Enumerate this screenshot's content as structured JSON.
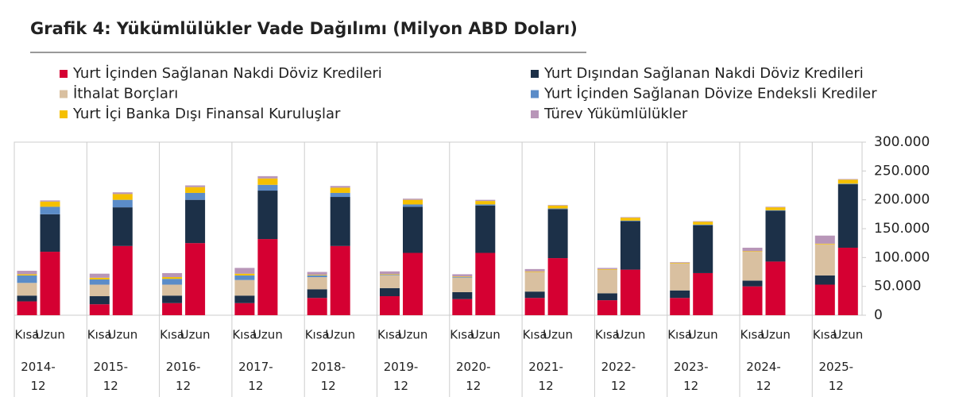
{
  "chart_data": {
    "type": "stacked-bar",
    "title": "Grafik 4: Yükümlülükler Vade Dağılımı (Milyon ABD Doları)",
    "groups": [
      "2014-12",
      "2015-12",
      "2016-12",
      "2017-12",
      "2018-12",
      "2019-12",
      "2020-12",
      "2021-12",
      "2022-12",
      "2023-12",
      "2024-12",
      "2025-12"
    ],
    "categories": [
      "Kısa",
      "Uzun",
      "Kısa",
      "Uzun",
      "Kısa",
      "Uzun",
      "Kısa",
      "Uzun",
      "Kısa",
      "Uzun",
      "Kısa",
      "Uzun",
      "Kısa",
      "Uzun",
      "Kısa",
      "Uzun",
      "Kısa",
      "Uzun",
      "Kısa",
      "Uzun",
      "Kısa",
      "Uzun",
      "Kısa",
      "Uzun"
    ],
    "series": [
      {
        "name": "Yurt İçinden Sağlanan Nakdi Döviz Kredileri",
        "color": "#d50032",
        "values": [
          24000,
          110000,
          19000,
          120000,
          21000,
          125000,
          21000,
          132000,
          30000,
          120000,
          33000,
          108000,
          28000,
          108000,
          30000,
          99000,
          26000,
          79000,
          30000,
          73000,
          50000,
          93000,
          53000,
          117000
        ]
      },
      {
        "name": "Yurt Dışından Sağlanan Nakdi Döviz Kredileri",
        "color": "#1c3048",
        "values": [
          10000,
          65000,
          14000,
          67000,
          13000,
          75000,
          13000,
          84000,
          15000,
          85000,
          14000,
          80000,
          12000,
          82000,
          11000,
          85000,
          12000,
          84000,
          13000,
          83000,
          10000,
          88000,
          16000,
          110000
        ]
      },
      {
        "name": "İthalat Borçları",
        "color": "#d9c0a0",
        "values": [
          22000,
          0,
          20000,
          0,
          19000,
          0,
          27000,
          0,
          21000,
          0,
          22000,
          0,
          25000,
          0,
          34000,
          0,
          41000,
          0,
          47000,
          0,
          50000,
          0,
          54000,
          0
        ]
      },
      {
        "name": "Yurt İçinden Sağlanan Dövize Endeksli Krediler",
        "color": "#5b8cc8",
        "values": [
          13000,
          13000,
          9000,
          13000,
          10000,
          12000,
          8000,
          10000,
          3000,
          7000,
          1000,
          4000,
          1000,
          2000,
          0,
          1000,
          0,
          1000,
          0,
          1000,
          0,
          1000,
          0,
          1000
        ]
      },
      {
        "name": "Yurt İçi Banka Dışı Finansal Kuruluşlar",
        "color": "#f5c000",
        "values": [
          2000,
          9000,
          3000,
          10000,
          3000,
          10000,
          3000,
          11000,
          1000,
          9000,
          1000,
          8000,
          1000,
          6000,
          1000,
          5000,
          1000,
          5000,
          1000,
          5000,
          1000,
          5000,
          1000,
          7000
        ]
      },
      {
        "name": "Türev Yükümlülükler",
        "color": "#b896b8",
        "values": [
          6000,
          2000,
          7000,
          3000,
          7000,
          3000,
          10000,
          4000,
          5000,
          3000,
          5000,
          2000,
          4000,
          2000,
          4000,
          1000,
          2000,
          1000,
          1000,
          1000,
          6000,
          1000,
          14000,
          1000
        ]
      }
    ],
    "ylim": [
      0,
      300000
    ],
    "yticks": [
      0,
      {
        "value": 50000,
        "label": "50.000"
      },
      {
        "value": 100000,
        "label": "100.000"
      },
      {
        "value": 150000,
        "label": "150.000"
      },
      {
        "value": 200000,
        "label": "200.000"
      },
      {
        "value": 250000,
        "label": "250.000"
      },
      {
        "value": 300000,
        "label": "300.000"
      }
    ]
  }
}
